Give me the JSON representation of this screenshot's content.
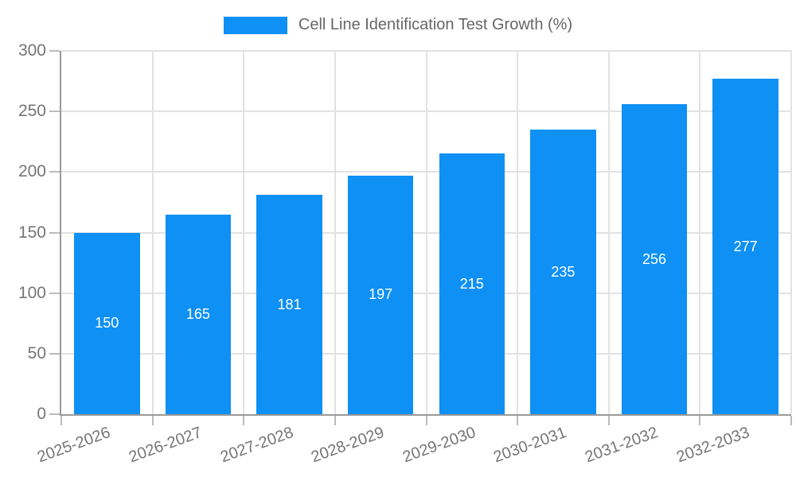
{
  "chart_data": {
    "type": "bar",
    "title": "Cell Line Identification Test Growth (%)",
    "legend": {
      "label": "Cell Line Identification Test Growth (%)",
      "position": "top"
    },
    "categories": [
      "2025-2026",
      "2026-2027",
      "2027-2028",
      "2028-2029",
      "2029-2030",
      "2030-2031",
      "2031-2032",
      "2032-2033"
    ],
    "values": [
      150,
      165,
      181,
      197,
      215,
      235,
      256,
      277
    ],
    "value_labels": {
      "position": "inside-center",
      "color": "#ffffff"
    },
    "xlabel": "",
    "ylabel": "",
    "ylim": [
      0,
      300
    ],
    "yticks": [
      0,
      50,
      100,
      150,
      200,
      250,
      300
    ],
    "grid": true,
    "xlabel_rotation_deg": -20,
    "colors": {
      "bar": "#0e90f5",
      "grid": "#e2e2e2",
      "axis": "#9a9a9a",
      "tick": "#bbbbbb",
      "axis_text": "#757575",
      "legend_text": "#666666",
      "background": "#ffffff"
    }
  }
}
